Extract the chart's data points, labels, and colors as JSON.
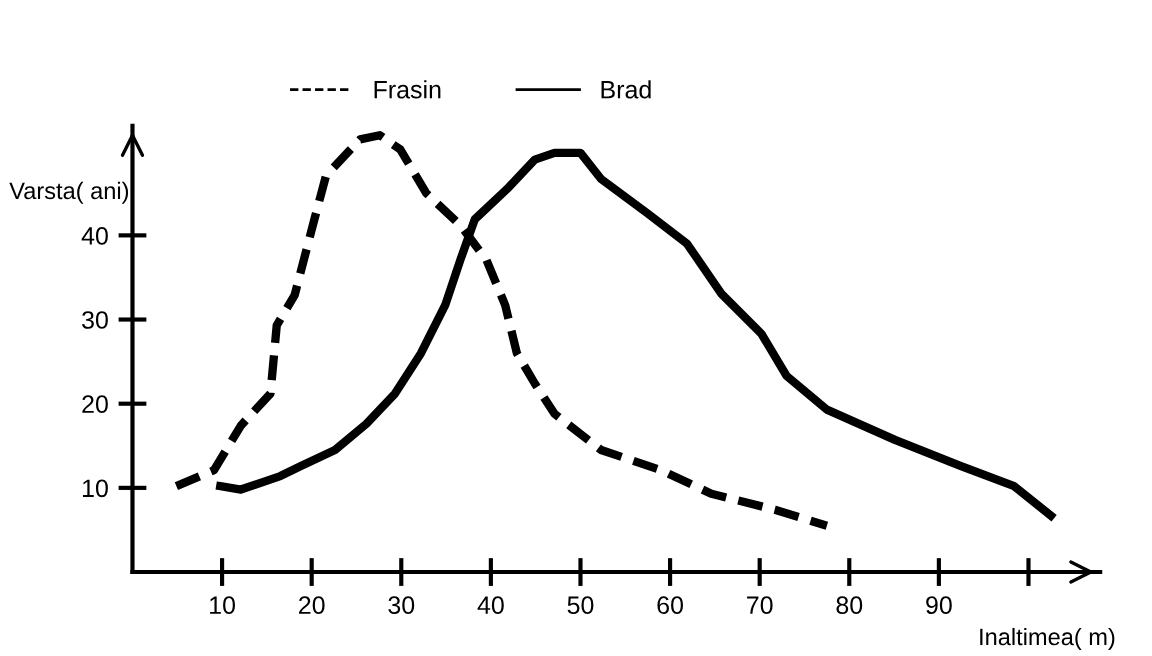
{
  "chart_data": {
    "type": "line",
    "xlabel": "Inaltimea( m)",
    "ylabel": "Varsta( ani)",
    "xlim": [
      0,
      108
    ],
    "ylim": [
      0,
      53
    ],
    "xticks": [
      10,
      20,
      30,
      40,
      50,
      60,
      70,
      80,
      90,
      {
        "value": 100,
        "label": null
      }
    ],
    "yticks": [
      10,
      20,
      30,
      40
    ],
    "grid": false,
    "legend": "top",
    "marker": "none",
    "series": [
      {
        "name": "Frasin",
        "color": "#000000",
        "line_style": "dashed",
        "x": [
          4.9,
          9.1,
          12.1,
          15.4,
          16.1,
          18.1,
          20.3,
          21.6,
          25.4,
          27.6,
          29.9,
          32.8,
          36.6,
          39.5,
          41.6,
          42.9,
          44.9,
          47.1,
          50,
          52.3,
          59,
          64.6,
          71.7,
          77.5
        ],
        "values": [
          10.2,
          12.1,
          17.4,
          21.2,
          29.3,
          32.9,
          41.9,
          47.1,
          51.4,
          51.9,
          50.2,
          45,
          41.2,
          37.1,
          31.7,
          26,
          22.4,
          18.8,
          16.4,
          14.5,
          12.1,
          9.3,
          7.4,
          5.5
        ]
      },
      {
        "name": "Brad",
        "color": "#000000",
        "line_style": "solid",
        "x": [
          9.8,
          12.1,
          16.5,
          18.8,
          22.6,
          26.1,
          29.3,
          32.2,
          34.9,
          36.6,
          38.2,
          41.8,
          44.9,
          47.1,
          50,
          52.3,
          57.5,
          61.9,
          65.7,
          70.2,
          73,
          77.5,
          85.1,
          92.4,
          98.4,
          102.5
        ],
        "values": [
          10.2,
          9.8,
          11.4,
          12.6,
          14.5,
          17.6,
          21.2,
          26,
          31.7,
          37.1,
          41.9,
          45.5,
          49,
          49.8,
          49.8,
          46.7,
          42.6,
          39,
          33.1,
          28.3,
          23.3,
          19.3,
          15.7,
          12.6,
          10.2,
          6.7
        ]
      }
    ]
  }
}
